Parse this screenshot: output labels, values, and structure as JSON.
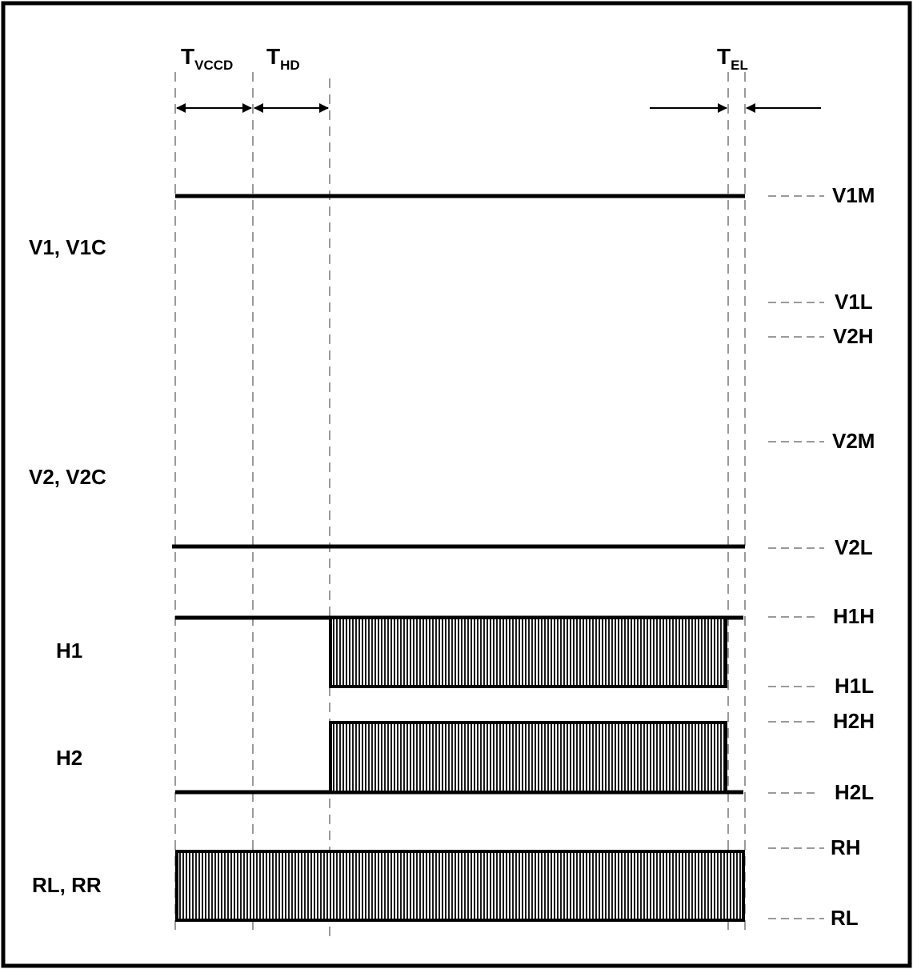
{
  "timing": {
    "t_vccd": {
      "main": "T",
      "sub": "VCCD"
    },
    "t_hd": {
      "main": "T",
      "sub": "HD"
    },
    "t_el": {
      "main": "T",
      "sub": "EL"
    }
  },
  "signals": {
    "v1": "V1, V1C",
    "v2": "V2, V2C",
    "h1": "H1",
    "h2": "H2",
    "r": "RL, RR"
  },
  "levels": {
    "v1m": "V1M",
    "v1l": "V1L",
    "v2h": "V2H",
    "v2m": "V2M",
    "v2l": "V2L",
    "h1h": "H1H",
    "h1l": "H1L",
    "h2h": "H2H",
    "h2l": "H2L",
    "rh": "RH",
    "rl": "RL"
  }
}
